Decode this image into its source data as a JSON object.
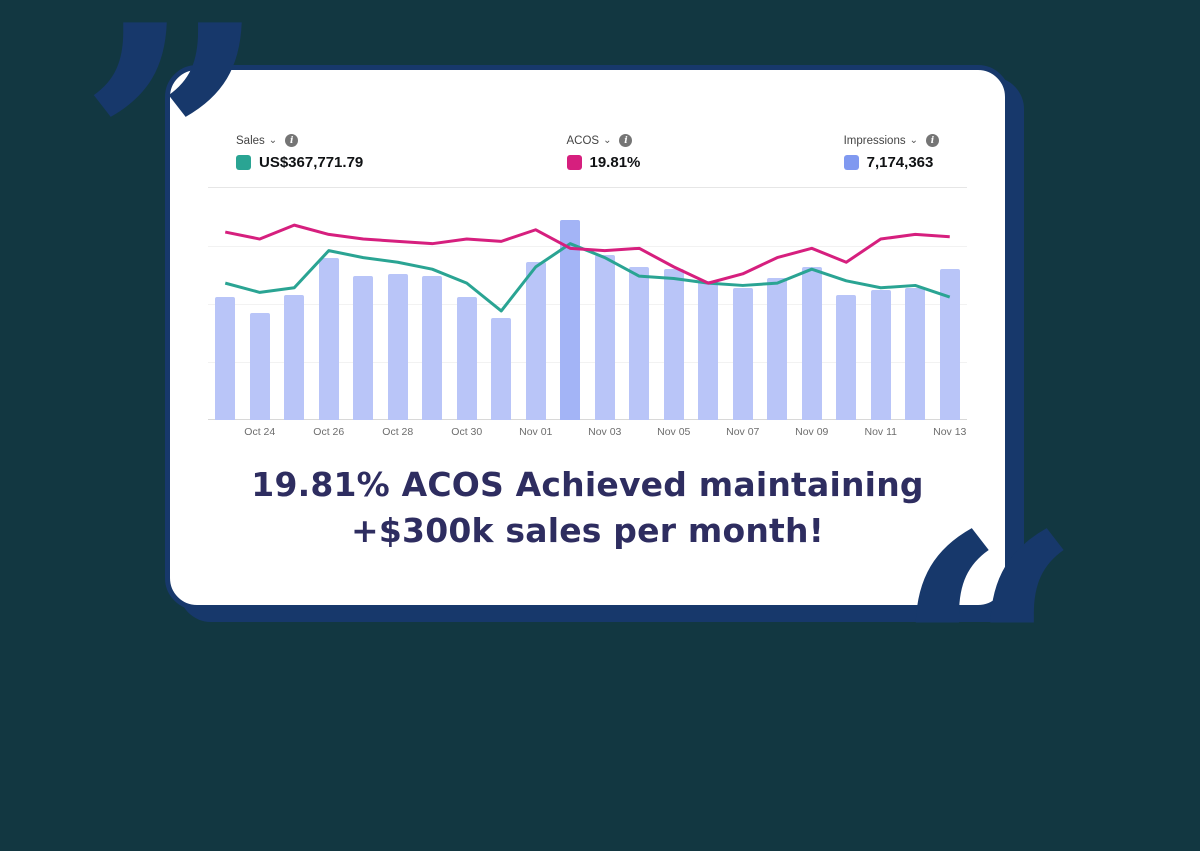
{
  "page": {
    "background_color": "#123741",
    "accent_navy": "#17386b",
    "card_background": "#ffffff"
  },
  "quotes": {
    "top_left_glyph": "”",
    "bottom_right_glyph": "“"
  },
  "icons": {
    "chevron_down": "⌄",
    "info": "i"
  },
  "legend": [
    {
      "label": "Sales",
      "value": "US$367,771.79",
      "color": "#2aa493"
    },
    {
      "label": "ACOS",
      "value": "19.81%",
      "color": "#d61f7e"
    },
    {
      "label": "Impressions",
      "value": "7,174,363",
      "color": "#8099f0"
    }
  ],
  "caption": {
    "line1": "19.81% ACOS Achieved maintaining",
    "line2": "+$300k sales per month!",
    "color": "#2e2d60"
  },
  "chart_data": {
    "type": "bar",
    "title": "",
    "legend_position": "top",
    "grid": "faint horizontal lines, no y-axis labels visible",
    "x_ticks": [
      "Oct 24",
      "Oct 26",
      "Oct 28",
      "Oct 30",
      "Nov 01",
      "Nov 03",
      "Nov 05",
      "Nov 07",
      "Nov 09",
      "Nov 11",
      "Nov 13"
    ],
    "bar_series_name": "Impressions",
    "bar_color": "#b9c5f8",
    "highlight_index": 10,
    "highlight_color": "#a3b4f6",
    "bars": [
      53,
      46,
      54,
      70,
      62,
      63,
      62,
      53,
      44,
      68,
      86,
      71,
      66,
      65,
      60,
      57,
      61,
      66,
      54,
      56,
      57,
      65
    ],
    "lines": [
      {
        "name": "Sales",
        "color": "#2aa493",
        "values": [
          59,
          55,
          57,
          73,
          70,
          68,
          65,
          59,
          47,
          66,
          76,
          70,
          62,
          61,
          59,
          58,
          59,
          65,
          60,
          57,
          58,
          53
        ]
      },
      {
        "name": "ACOS",
        "color": "#d61f7e",
        "values": [
          81,
          78,
          84,
          80,
          78,
          77,
          76,
          78,
          77,
          82,
          74,
          73,
          74,
          66,
          59,
          63,
          70,
          74,
          68,
          78,
          80,
          79
        ]
      }
    ],
    "y_note": "values are normalized percent of chart height (0-100); absolute y-axis not shown in screenshot"
  }
}
